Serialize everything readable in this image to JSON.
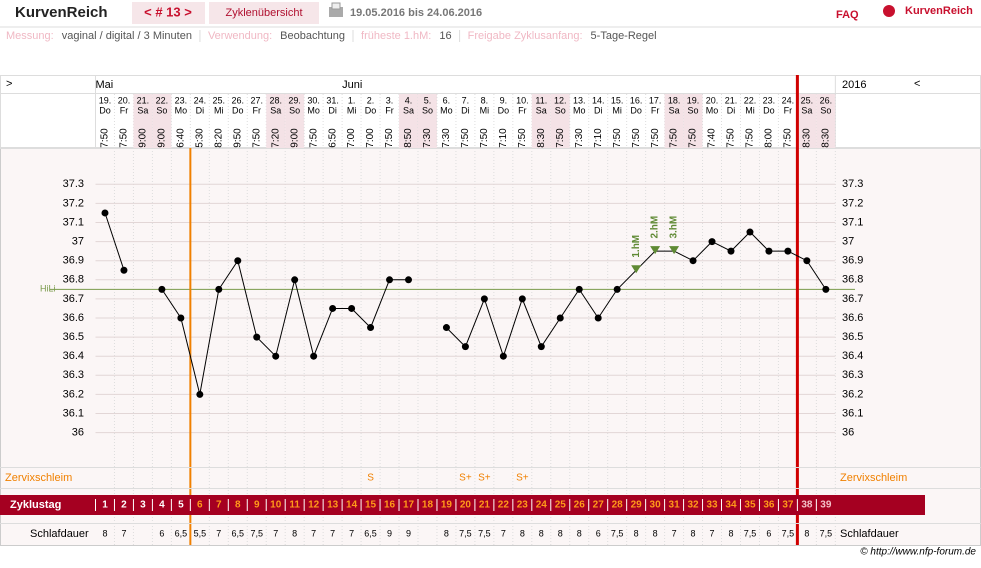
{
  "header": {
    "logo": "KurvenReich",
    "cycle_nav": "< # 13 >",
    "tab": "Zyklenübersicht",
    "date_range": "19.05.2016 bis 24.06.2016",
    "faq": "FAQ",
    "brand": "KurvenReich"
  },
  "info": [
    {
      "label": "Messung:",
      "value": "vaginal / digital / 3 Minuten"
    },
    {
      "label": "Verwendung:",
      "value": "Beobachtung"
    },
    {
      "label": "früheste 1.hM:",
      "value": "16"
    },
    {
      "label": "Freigabe Zyklusanfang:",
      "value": "5-Tage-Regel"
    }
  ],
  "chart_data": {
    "type": "line",
    "nav_left": ">",
    "nav_right": "<",
    "year": "2016",
    "month_labels": [
      "Mai",
      null,
      null,
      null,
      null,
      null,
      null,
      null,
      null,
      null,
      null,
      null,
      null,
      "Juni",
      null,
      null,
      null,
      null,
      null,
      null,
      null,
      null,
      null,
      null,
      null,
      null,
      null,
      null,
      null,
      null,
      null,
      null,
      null,
      null,
      null,
      null,
      null,
      null,
      null
    ],
    "categories": [
      "19.",
      "20.",
      "21.",
      "22.",
      "23.",
      "24.",
      "25.",
      "26.",
      "27.",
      "28.",
      "29.",
      "30.",
      "31.",
      "1.",
      "2.",
      "3.",
      "4.",
      "5.",
      "6.",
      "7.",
      "8.",
      "9.",
      "10.",
      "11.",
      "12.",
      "13.",
      "14.",
      "15.",
      "16.",
      "17.",
      "18.",
      "19.",
      "20.",
      "21.",
      "22.",
      "23.",
      "24.",
      "25.",
      "26."
    ],
    "weekdays": [
      "Do",
      "Fr",
      "Sa",
      "So",
      "Mo",
      "Di",
      "Mi",
      "Do",
      "Fr",
      "Sa",
      "So",
      "Mo",
      "Di",
      "Mi",
      "Do",
      "Fr",
      "Sa",
      "So",
      "Mo",
      "Di",
      "Mi",
      "Do",
      "Fr",
      "Sa",
      "So",
      "Mo",
      "Di",
      "Mi",
      "Do",
      "Fr",
      "Sa",
      "So",
      "Mo",
      "Di",
      "Mi",
      "Do",
      "Fr",
      "Sa",
      "So"
    ],
    "shaded_columns": [
      false,
      false,
      true,
      true,
      false,
      false,
      false,
      false,
      false,
      true,
      true,
      false,
      false,
      false,
      false,
      false,
      true,
      true,
      false,
      false,
      false,
      false,
      false,
      true,
      true,
      false,
      false,
      false,
      false,
      false,
      true,
      true,
      false,
      false,
      false,
      false,
      false,
      true,
      true
    ],
    "shade_color": "#f4e2e6",
    "times": [
      "7:50",
      "7:50",
      "9:00",
      "9:00",
      "6:40",
      "5:30",
      "8:20",
      "9:50",
      "7:50",
      "7:20",
      "9:00",
      "7:50",
      "6:50",
      "7:00",
      "7:00",
      "7:50",
      "8:50",
      "7:30",
      "7:30",
      "7:50",
      "7:50",
      "7:10",
      "7:50",
      "8:30",
      "7:50",
      "7:30",
      "7:10",
      "7:50",
      "7:50",
      "7:50",
      "7:50",
      "7:50",
      "7:40",
      "7:50",
      "7:50",
      "8:00",
      "7:50",
      "8:30",
      "8:30"
    ],
    "values": [
      37.15,
      36.85,
      null,
      36.75,
      36.6,
      36.2,
      36.75,
      36.9,
      36.5,
      36.4,
      36.8,
      36.4,
      36.65,
      36.65,
      36.55,
      36.8,
      36.8,
      null,
      36.55,
      36.45,
      36.7,
      36.4,
      36.7,
      36.45,
      36.6,
      36.75,
      36.6,
      36.75,
      36.85,
      36.95,
      36.95,
      36.9,
      37.0,
      36.95,
      37.05,
      36.95,
      36.95,
      36.9,
      36.75
    ],
    "color": "#000000",
    "ylim": [
      35.82,
      37.49
    ],
    "yticks": [
      36,
      36.1,
      36.2,
      36.3,
      36.4,
      36.5,
      36.6,
      36.7,
      36.8,
      36.9,
      37,
      37.1,
      37.2,
      37.3
    ],
    "grid": true,
    "hili": {
      "label": "HiLi",
      "value": 36.75,
      "color": "#7a9a4a"
    },
    "hm_labels": [
      null,
      null,
      null,
      null,
      null,
      null,
      null,
      null,
      null,
      null,
      null,
      null,
      null,
      null,
      null,
      null,
      null,
      null,
      null,
      null,
      null,
      null,
      null,
      null,
      null,
      null,
      null,
      null,
      "1.hM",
      "2.hM",
      "3.hM",
      null,
      null,
      null,
      null,
      null,
      null,
      null,
      null
    ],
    "hm_color": "#5f8a34",
    "row_labels": {
      "mucus": "Zervixschleim",
      "cycle_day": "Zyklustag",
      "sleep": "Schlafdauer"
    },
    "mucus": [
      null,
      null,
      null,
      null,
      null,
      null,
      null,
      null,
      null,
      null,
      null,
      null,
      null,
      null,
      "S",
      null,
      null,
      null,
      null,
      "S+",
      "S+",
      null,
      "S+",
      null,
      null,
      null,
      null,
      null,
      null,
      null,
      null,
      null,
      null,
      null,
      null,
      null,
      null,
      null,
      null
    ],
    "cycle_days": [
      1,
      2,
      3,
      4,
      5,
      6,
      7,
      8,
      9,
      10,
      11,
      12,
      13,
      14,
      15,
      16,
      17,
      18,
      19,
      20,
      21,
      22,
      23,
      24,
      25,
      26,
      27,
      28,
      29,
      30,
      31,
      32,
      33,
      34,
      35,
      36,
      37,
      38,
      39
    ],
    "sleep": [
      "8",
      "7",
      null,
      "6",
      "6,5",
      "5,5",
      "7",
      "6,5",
      "7,5",
      "7",
      "8",
      "7",
      "7",
      "7",
      "6,5",
      "9",
      "9",
      null,
      "8",
      "7,5",
      "7,5",
      "7",
      "8",
      "8",
      "8",
      "8",
      "6",
      "7,5",
      "8",
      "8",
      "7",
      "8",
      "7",
      "8",
      "7,5",
      "6",
      "7,5",
      "8",
      "7,5"
    ],
    "copyright": "© http://www.nfp-forum.de"
  }
}
